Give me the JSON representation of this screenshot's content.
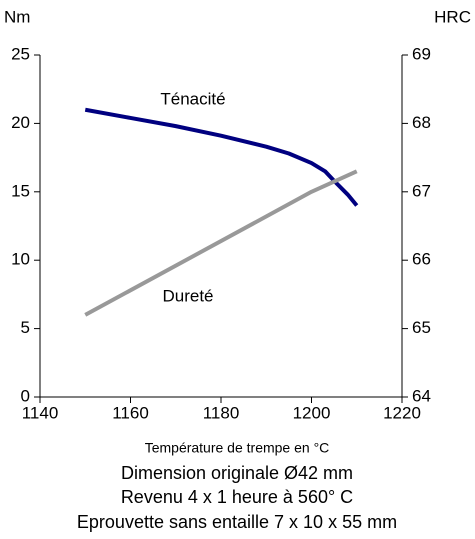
{
  "chart_data": {
    "type": "line",
    "xlabel": "Température de trempe en °C",
    "ylabel": "Nm",
    "y2label": "HRC",
    "notes": [
      "Dimension originale Ø42 mm",
      "Revenu 4 x 1 heure à 560° C",
      "Eprouvette sans entaille 7 x 10 x 55 mm"
    ],
    "xlim": [
      1140,
      1220
    ],
    "xticks": [
      1140,
      1160,
      1180,
      1200,
      1220
    ],
    "ylim": [
      0,
      25
    ],
    "yticks": [
      0,
      5,
      10,
      15,
      20,
      25
    ],
    "y2lim": [
      64,
      69
    ],
    "y2ticks": [
      64,
      65,
      66,
      67,
      68,
      69
    ],
    "series": [
      {
        "name": "Ténacité",
        "color": "#000080",
        "axis": "y",
        "x": [
          1150,
          1160,
          1170,
          1180,
          1190,
          1195,
          1200,
          1203,
          1205,
          1208,
          1210
        ],
        "values": [
          21,
          20.4,
          19.8,
          19.1,
          18.3,
          17.8,
          17.1,
          16.5,
          15.8,
          14.8,
          14
        ]
      },
      {
        "name": "Dureté",
        "color": "#999999",
        "axis": "y2",
        "x": [
          1150,
          1200,
          1210
        ],
        "values": [
          65.2,
          67.0,
          67.3
        ]
      }
    ]
  }
}
